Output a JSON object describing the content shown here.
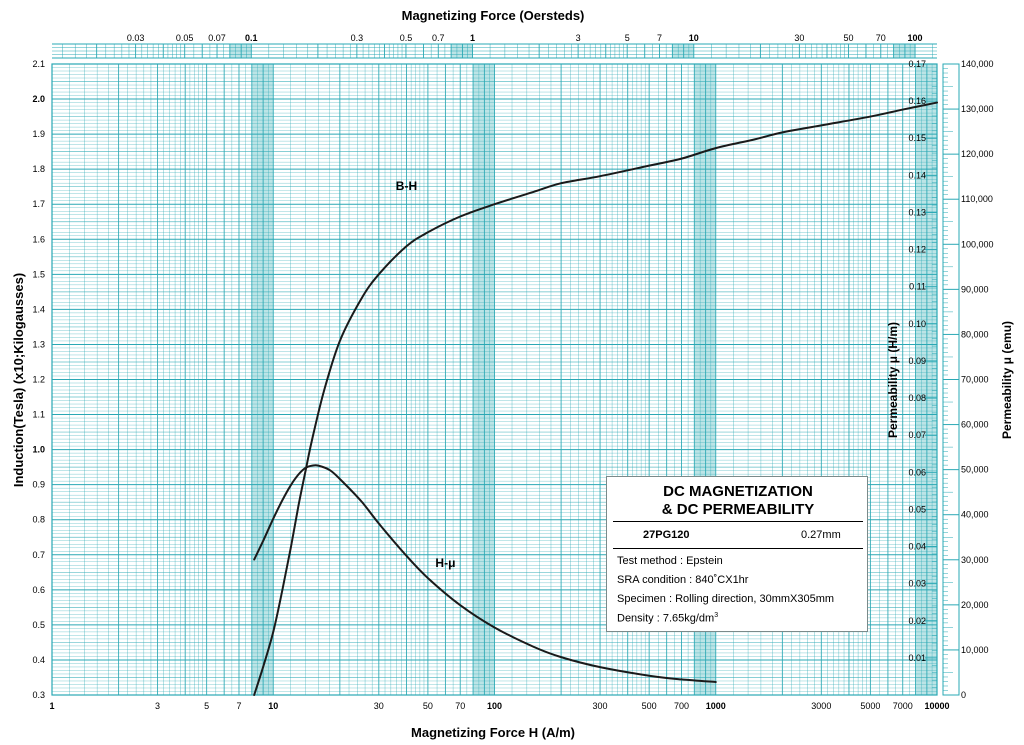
{
  "chart_data": {
    "type": "line",
    "title": "",
    "top_axis_label": "Magnetizing Force (Oersteds)",
    "xlabel": "Magnetizing Force H (A/m)",
    "ylabel_left": "Induction(Tesla) (x10;Kilogausses)",
    "ylabel_right_inner": "Permeability μ (H/m)",
    "ylabel_right_outer": "Permeability μ (emu)",
    "x_scale": "log",
    "xlim": [
      1,
      10000
    ],
    "ylim_left": [
      0.3,
      2.1
    ],
    "ylim_right_hm": [
      0,
      0.17
    ],
    "ylim_right_emu": [
      0,
      140000
    ],
    "x_ticks": [
      {
        "v": 1,
        "label": "1",
        "bold": true
      },
      {
        "v": 3,
        "label": "3",
        "bold": false
      },
      {
        "v": 5,
        "label": "5",
        "bold": false
      },
      {
        "v": 7,
        "label": "7",
        "bold": false
      },
      {
        "v": 10,
        "label": "10",
        "bold": true
      },
      {
        "v": 30,
        "label": "30",
        "bold": false
      },
      {
        "v": 50,
        "label": "50",
        "bold": false
      },
      {
        "v": 70,
        "label": "70",
        "bold": false
      },
      {
        "v": 100,
        "label": "100",
        "bold": true
      },
      {
        "v": 300,
        "label": "300",
        "bold": false
      },
      {
        "v": 500,
        "label": "500",
        "bold": false
      },
      {
        "v": 700,
        "label": "700",
        "bold": false
      },
      {
        "v": 1000,
        "label": "1000",
        "bold": true
      },
      {
        "v": 3000,
        "label": "3000",
        "bold": false
      },
      {
        "v": 5000,
        "label": "5000",
        "bold": false
      },
      {
        "v": 7000,
        "label": "7000",
        "bold": false
      },
      {
        "v": 10000,
        "label": "10000",
        "bold": true
      }
    ],
    "top_ticks": [
      {
        "v": 0.03,
        "label": "0.03",
        "bold": false
      },
      {
        "v": 0.05,
        "label": "0.05",
        "bold": false
      },
      {
        "v": 0.07,
        "label": "0.07",
        "bold": false
      },
      {
        "v": 0.1,
        "label": "0.1",
        "bold": true
      },
      {
        "v": 0.3,
        "label": "0.3",
        "bold": false
      },
      {
        "v": 0.5,
        "label": "0.5",
        "bold": false
      },
      {
        "v": 0.7,
        "label": "0.7",
        "bold": false
      },
      {
        "v": 1,
        "label": "1",
        "bold": true
      },
      {
        "v": 3,
        "label": "3",
        "bold": false
      },
      {
        "v": 5,
        "label": "5",
        "bold": false
      },
      {
        "v": 7,
        "label": "7",
        "bold": false
      },
      {
        "v": 10,
        "label": "10",
        "bold": true
      },
      {
        "v": 30,
        "label": "30",
        "bold": false
      },
      {
        "v": 50,
        "label": "50",
        "bold": false
      },
      {
        "v": 70,
        "label": "70",
        "bold": false
      },
      {
        "v": 100,
        "label": "100",
        "bold": true
      }
    ],
    "y_left_ticks": [
      {
        "v": 0.3,
        "label": "0.3",
        "bold": false
      },
      {
        "v": 0.4,
        "label": "0.4",
        "bold": false
      },
      {
        "v": 0.5,
        "label": "0.5",
        "bold": false
      },
      {
        "v": 0.6,
        "label": "0.6",
        "bold": false
      },
      {
        "v": 0.7,
        "label": "0.7",
        "bold": false
      },
      {
        "v": 0.8,
        "label": "0.8",
        "bold": false
      },
      {
        "v": 0.9,
        "label": "0.9",
        "bold": false
      },
      {
        "v": 1.0,
        "label": "1.0",
        "bold": true
      },
      {
        "v": 1.1,
        "label": "1.1",
        "bold": false
      },
      {
        "v": 1.2,
        "label": "1.2",
        "bold": false
      },
      {
        "v": 1.3,
        "label": "1.3",
        "bold": false
      },
      {
        "v": 1.4,
        "label": "1.4",
        "bold": false
      },
      {
        "v": 1.5,
        "label": "1.5",
        "bold": false
      },
      {
        "v": 1.6,
        "label": "1.6",
        "bold": false
      },
      {
        "v": 1.7,
        "label": "1.7",
        "bold": false
      },
      {
        "v": 1.8,
        "label": "1.8",
        "bold": false
      },
      {
        "v": 1.9,
        "label": "1.9",
        "bold": false
      },
      {
        "v": 2.0,
        "label": "2.0",
        "bold": true
      },
      {
        "v": 2.1,
        "label": "2.1",
        "bold": false
      }
    ],
    "y_right_hm_ticks": [
      {
        "v": 0.01,
        "label": "0.01"
      },
      {
        "v": 0.02,
        "label": "0.02"
      },
      {
        "v": 0.03,
        "label": "0.03"
      },
      {
        "v": 0.04,
        "label": "0.04"
      },
      {
        "v": 0.05,
        "label": "0.05"
      },
      {
        "v": 0.06,
        "label": "0.06"
      },
      {
        "v": 0.07,
        "label": "0.07"
      },
      {
        "v": 0.08,
        "label": "0.08"
      },
      {
        "v": 0.09,
        "label": "0.09"
      },
      {
        "v": 0.1,
        "label": "0.10"
      },
      {
        "v": 0.11,
        "label": "0.11"
      },
      {
        "v": 0.12,
        "label": "0.12"
      },
      {
        "v": 0.13,
        "label": "0.13"
      },
      {
        "v": 0.14,
        "label": "0.14"
      },
      {
        "v": 0.15,
        "label": "0.15"
      },
      {
        "v": 0.16,
        "label": "0.16"
      },
      {
        "v": 0.17,
        "label": "0.17"
      }
    ],
    "y_right_emu_ticks": [
      {
        "v": 0,
        "label": "0"
      },
      {
        "v": 10000,
        "label": "10,000"
      },
      {
        "v": 20000,
        "label": "20,000"
      },
      {
        "v": 30000,
        "label": "30,000"
      },
      {
        "v": 40000,
        "label": "40,000"
      },
      {
        "v": 50000,
        "label": "50,000"
      },
      {
        "v": 60000,
        "label": "60,000"
      },
      {
        "v": 70000,
        "label": "70,000"
      },
      {
        "v": 80000,
        "label": "80,000"
      },
      {
        "v": 90000,
        "label": "90,000"
      },
      {
        "v": 100000,
        "label": "100,000"
      },
      {
        "v": 110000,
        "label": "110,000"
      },
      {
        "v": 120000,
        "label": "120,000"
      },
      {
        "v": 130000,
        "label": "130,000"
      },
      {
        "v": 140000,
        "label": "140,000"
      }
    ],
    "series": [
      {
        "name": "B-H",
        "axis": "left",
        "x": [
          8.2,
          9,
          10,
          11,
          12,
          13,
          14,
          15,
          17,
          20,
          25,
          30,
          40,
          50,
          70,
          100,
          150,
          200,
          300,
          500,
          700,
          1000,
          1500,
          2000,
          3000,
          5000,
          7000,
          10000
        ],
        "y": [
          0.3,
          0.38,
          0.48,
          0.6,
          0.72,
          0.84,
          0.94,
          1.03,
          1.17,
          1.31,
          1.43,
          1.5,
          1.58,
          1.62,
          1.665,
          1.7,
          1.735,
          1.76,
          1.78,
          1.81,
          1.83,
          1.86,
          1.885,
          1.905,
          1.925,
          1.95,
          1.97,
          1.99
        ]
      },
      {
        "name": "H-μ",
        "axis": "right",
        "x": [
          8.2,
          9,
          10,
          11,
          12,
          13,
          14,
          15,
          16,
          18,
          20,
          25,
          30,
          40,
          50,
          70,
          100,
          150,
          200,
          300,
          500,
          700,
          1000
        ],
        "y": [
          0.0365,
          0.0415,
          0.0475,
          0.0525,
          0.0565,
          0.0594,
          0.0612,
          0.0618,
          0.0618,
          0.0606,
          0.0582,
          0.0522,
          0.0462,
          0.0375,
          0.0315,
          0.0242,
          0.0182,
          0.013,
          0.0102,
          0.0075,
          0.0052,
          0.0042,
          0.0035
        ]
      }
    ],
    "annotations": [
      {
        "text": "B-H",
        "at_x": 40,
        "at_y": 1.74
      },
      {
        "text": "H-μ",
        "at_x": 60,
        "at_y": 0.665
      }
    ],
    "grid": true,
    "legend_placement": "bottom-right"
  },
  "infobox": {
    "title_line1": "DC MAGNETIZATION",
    "title_line2": "& DC PERMEABILITY",
    "grade": "27PG120",
    "thickness": "0.27mm",
    "test_method": "Test method : Epstein",
    "sra": "SRA condition : 840˚CX1hr",
    "specimen": "Specimen : Rolling direction, 30mmX305mm",
    "density_text": "Density : 7.65kg/dm",
    "density_sup": "3"
  },
  "colors": {
    "grid_line": "#2aa8b4",
    "band": "#9fd9db",
    "curve": "#1a1a1a",
    "background": "#ffffff"
  }
}
